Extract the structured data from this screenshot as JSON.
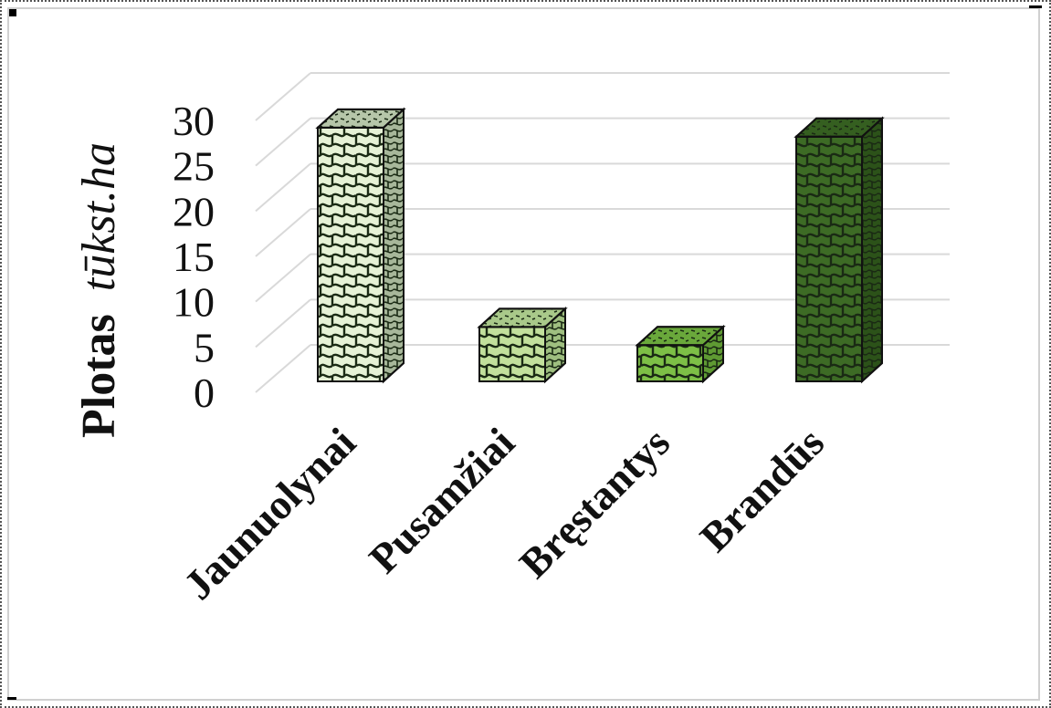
{
  "chart_data": {
    "type": "bar",
    "style": "3d-column",
    "categories": [
      "Jaunuolynai",
      "Pusamžiai",
      "Bręstantys",
      "Brandūs"
    ],
    "values": [
      28,
      6,
      4,
      27
    ],
    "ylabel_bold": "Plotas",
    "ylabel_italic": "tūkst.ha",
    "ylim": [
      0,
      30
    ],
    "yticks": [
      "0",
      "5",
      "10",
      "15",
      "20",
      "25",
      "30"
    ],
    "grid": true,
    "legend": "none",
    "colors": [
      "#e6f2d6",
      "#c2e09c",
      "#7dbf46",
      "#3d6b25"
    ]
  }
}
